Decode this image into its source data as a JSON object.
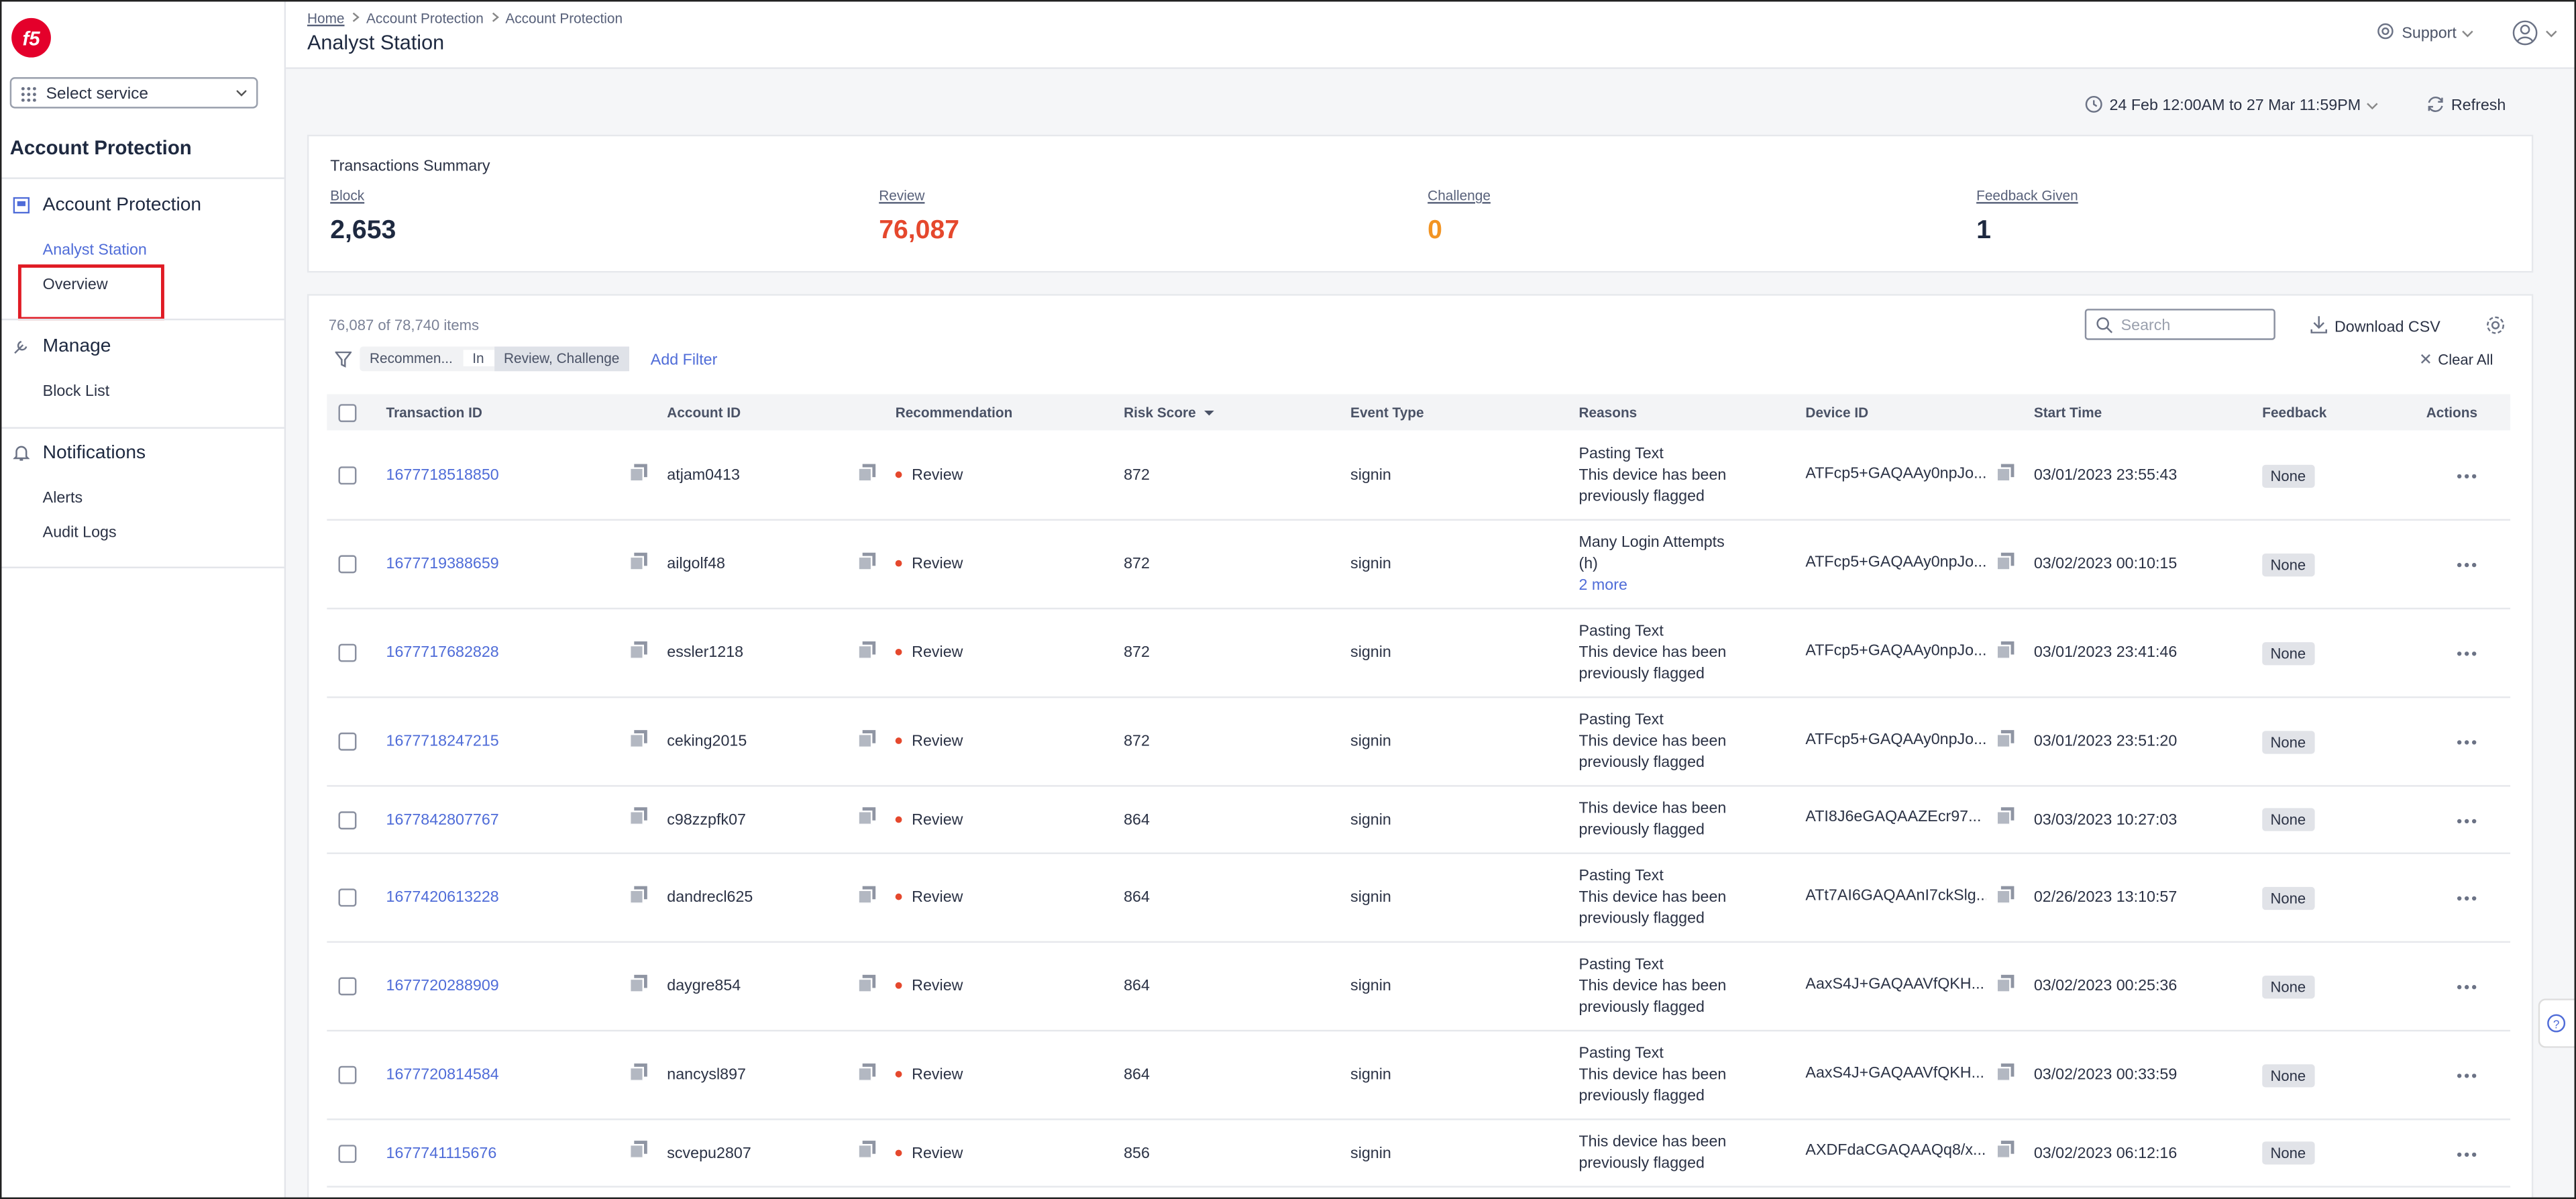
{
  "header": {
    "breadcrumb": [
      "Home",
      "Account Protection",
      "Account Protection"
    ],
    "title": "Analyst Station",
    "support": "Support"
  },
  "sidebar": {
    "select_service": "Select service",
    "service_title": "Account Protection",
    "sections": [
      {
        "title": "Account Protection",
        "items": [
          "Analyst Station",
          "Overview"
        ]
      },
      {
        "title": "Manage",
        "items": [
          "Block List"
        ]
      },
      {
        "title": "Notifications",
        "items": [
          "Alerts",
          "Audit Logs"
        ]
      }
    ]
  },
  "toolbar": {
    "date_range": "24 Feb 12:00AM to 27 Mar 11:59PM",
    "refresh": "Refresh"
  },
  "summary": {
    "title": "Transactions Summary",
    "items": [
      {
        "label": "Block",
        "value": "2,653"
      },
      {
        "label": "Review",
        "value": "76,087"
      },
      {
        "label": "Challenge",
        "value": "0"
      },
      {
        "label": "Feedback Given",
        "value": "1"
      }
    ]
  },
  "table": {
    "count": "76,087 of 78,740 items",
    "filter": {
      "field": "Recommen...",
      "operator": "In",
      "value": "Review, Challenge"
    },
    "add_filter": "Add Filter",
    "search_placeholder": "Search",
    "download": "Download CSV",
    "clear_all": "Clear All",
    "columns": [
      "Transaction ID",
      "Account ID",
      "Recommendation",
      "Risk Score",
      "Event Type",
      "Reasons",
      "Device ID",
      "Start Time",
      "Feedback",
      "Actions"
    ],
    "rows": [
      {
        "id": "1677718518850",
        "account": "atjam0413",
        "recommendation": "Review",
        "risk": "872",
        "event": "signin",
        "reasons": [
          "Pasting Text",
          "This device has been previously flagged"
        ],
        "device": "ATFcp5+GAQAAy0npJo...",
        "start": "03/01/2023 23:55:43",
        "feedback": "None"
      },
      {
        "id": "1677719388659",
        "account": "ailgolf48",
        "recommendation": "Review",
        "risk": "872",
        "event": "signin",
        "reasons": [
          "Many Login Attempts (h)"
        ],
        "more": "2 more",
        "device": "ATFcp5+GAQAAy0npJo...",
        "start": "03/02/2023 00:10:15",
        "feedback": "None"
      },
      {
        "id": "1677717682828",
        "account": "essler1218",
        "recommendation": "Review",
        "risk": "872",
        "event": "signin",
        "reasons": [
          "Pasting Text",
          "This device has been previously flagged"
        ],
        "device": "ATFcp5+GAQAAy0npJo...",
        "start": "03/01/2023 23:41:46",
        "feedback": "None"
      },
      {
        "id": "1677718247215",
        "account": "ceking2015",
        "recommendation": "Review",
        "risk": "872",
        "event": "signin",
        "reasons": [
          "Pasting Text",
          "This device has been previously flagged"
        ],
        "device": "ATFcp5+GAQAAy0npJo...",
        "start": "03/01/2023 23:51:20",
        "feedback": "None"
      },
      {
        "id": "1677842807767",
        "account": "c98zzpfk07",
        "recommendation": "Review",
        "risk": "864",
        "event": "signin",
        "reasons": [
          "This device has been previously flagged"
        ],
        "device": "ATI8J6eGAQAAZEcr97...",
        "start": "03/03/2023 10:27:03",
        "feedback": "None"
      },
      {
        "id": "1677420613228",
        "account": "dandrecl625",
        "recommendation": "Review",
        "risk": "864",
        "event": "signin",
        "reasons": [
          "Pasting Text",
          "This device has been previously flagged"
        ],
        "device": "ATt7AI6GAQAAnI7ckSlg...",
        "start": "02/26/2023 13:10:57",
        "feedback": "None"
      },
      {
        "id": "1677720288909",
        "account": "daygre854",
        "recommendation": "Review",
        "risk": "864",
        "event": "signin",
        "reasons": [
          "Pasting Text",
          "This device has been previously flagged"
        ],
        "device": "AaxS4J+GAQAAVfQKH...",
        "start": "03/02/2023 00:25:36",
        "feedback": "None"
      },
      {
        "id": "1677720814584",
        "account": "nancysl897",
        "recommendation": "Review",
        "risk": "864",
        "event": "signin",
        "reasons": [
          "Pasting Text",
          "This device has been previously flagged"
        ],
        "device": "AaxS4J+GAQAAVfQKH...",
        "start": "03/02/2023 00:33:59",
        "feedback": "None"
      },
      {
        "id": "1677741115676",
        "account": "scvepu2807",
        "recommendation": "Review",
        "risk": "856",
        "event": "signin",
        "reasons": [
          "This device has been previously flagged"
        ],
        "device": "AXDFdaCGAQAAQq8/x...",
        "start": "03/02/2023 06:12:16",
        "feedback": "None"
      }
    ]
  }
}
